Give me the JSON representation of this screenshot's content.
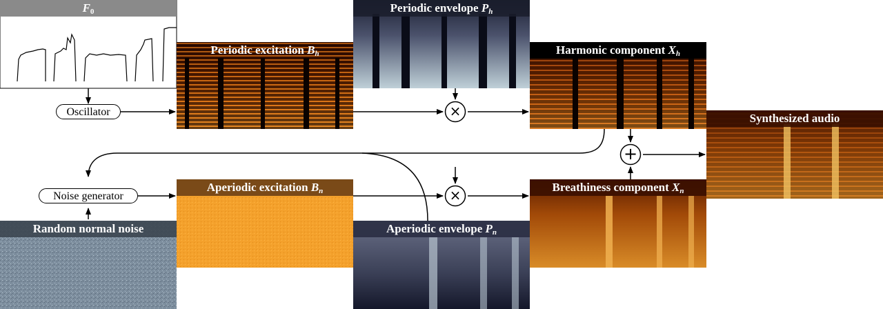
{
  "panels": {
    "f0": {
      "title": "F",
      "sub": "0"
    },
    "periodic_excitation": {
      "title": "Periodic excitation",
      "sym": "B",
      "sub": "h"
    },
    "periodic_envelope": {
      "title": "Periodic envelope",
      "sym": "P",
      "sub": "h"
    },
    "harmonic": {
      "title": "Harmonic component",
      "sym": "X",
      "sub": "h"
    },
    "synthesized": {
      "title": "Synthesized audio"
    },
    "aperiodic_excitation": {
      "title": "Aperiodic excitation",
      "sym": "B",
      "sub": "n"
    },
    "aperiodic_envelope": {
      "title": "Aperiodic envelope",
      "sym": "P",
      "sub": "n"
    },
    "breathiness": {
      "title": "Breathiness component",
      "sym": "X",
      "sub": "n"
    },
    "random_noise": {
      "title": "Random normal noise"
    }
  },
  "nodes": {
    "oscillator": "Oscillator",
    "noise_generator": "Noise generator"
  },
  "operators": {
    "multiply_periodic": "×",
    "multiply_aperiodic": "×",
    "add": "+"
  },
  "colors": {
    "title_bar_gray": "#8a8a8a",
    "title_bar_black": "#000000",
    "excitation_orange": "#f2a12a",
    "envelope_blue": "#4a5068",
    "noise_gray_blue": "#7e8fa0",
    "spectrogram_fire": "#d0721a"
  }
}
